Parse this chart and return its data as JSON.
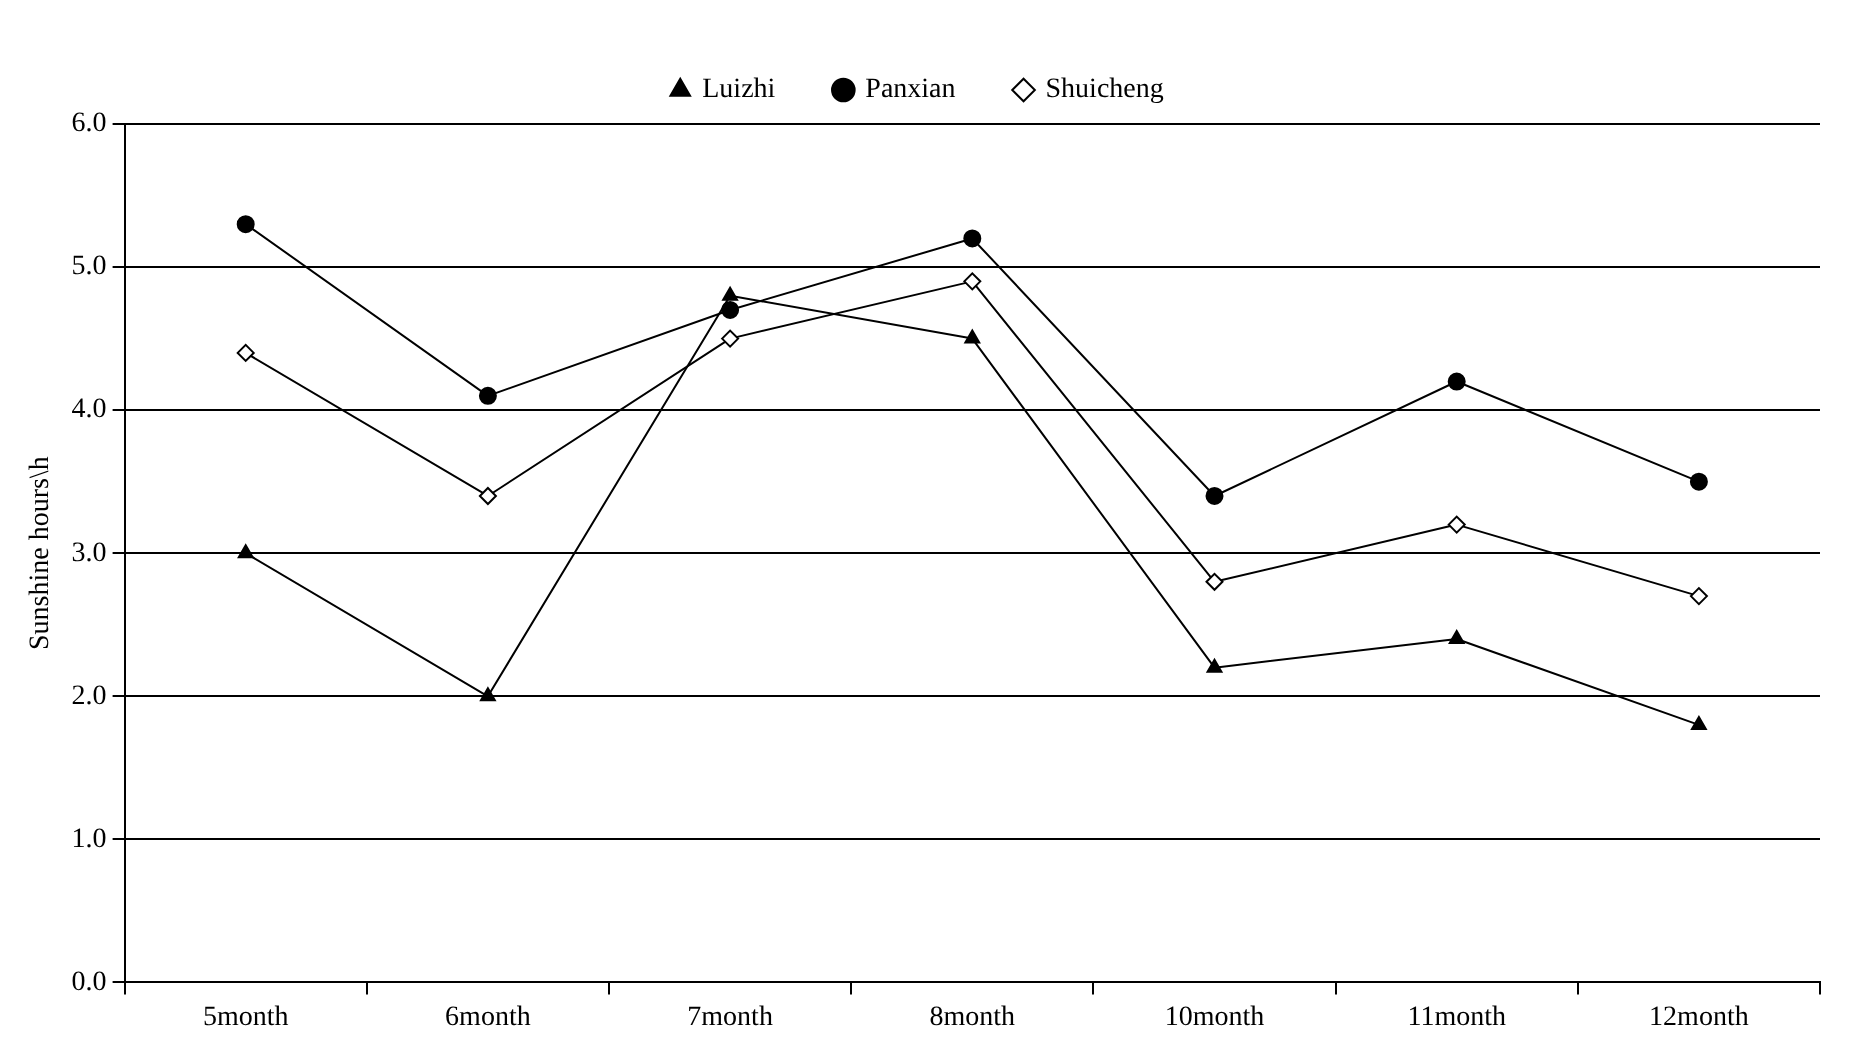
{
  "chart_data": {
    "type": "line",
    "ylabel": "Sunshine hours\\h",
    "categories": [
      "5month",
      "6month",
      "7month",
      "8month",
      "10month",
      "11month",
      "12month"
    ],
    "series": [
      {
        "name": "Luizhi",
        "color": "#000000",
        "marker": "triangle",
        "values": [
          3.0,
          2.0,
          4.8,
          4.5,
          2.2,
          2.4,
          1.8
        ]
      },
      {
        "name": "Panxian",
        "color": "#000000",
        "marker": "circle",
        "values": [
          5.3,
          4.1,
          4.7,
          5.2,
          3.4,
          4.2,
          3.5
        ]
      },
      {
        "name": "Shuicheng",
        "color": "#000000",
        "marker": "diamond",
        "values": [
          4.4,
          3.4,
          4.5,
          4.9,
          2.8,
          3.2,
          2.7
        ]
      }
    ],
    "ylim": [
      0,
      6
    ],
    "yticks": [
      {
        "value": 0,
        "label": "0.0"
      },
      {
        "value": 1,
        "label": "1.0"
      },
      {
        "value": 2,
        "label": "2.0"
      },
      {
        "value": 3,
        "label": "3.0"
      },
      {
        "value": 4,
        "label": "4.0"
      },
      {
        "value": 5,
        "label": "5.0"
      },
      {
        "value": 6,
        "label": "6.0"
      }
    ],
    "grid": "y",
    "legend": "top",
    "line_style": "solid"
  }
}
